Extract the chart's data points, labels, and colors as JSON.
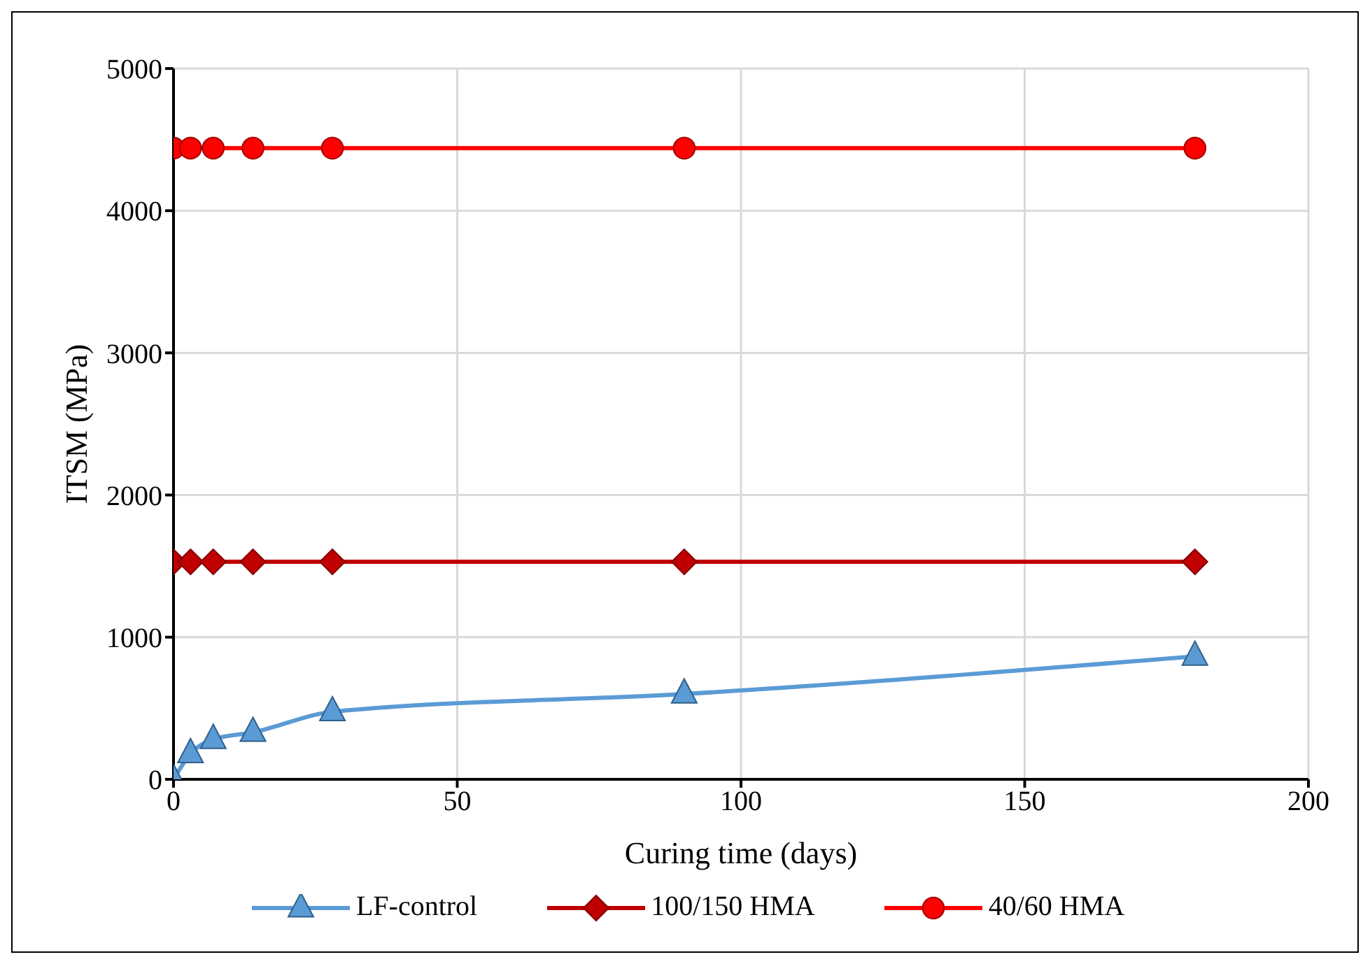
{
  "chart_data": {
    "type": "line",
    "xlabel": "Curing time (days)",
    "ylabel": "ITSM (MPa)",
    "x": [
      0,
      3,
      7,
      14,
      28,
      90,
      180
    ],
    "series": [
      {
        "name": "LF-control",
        "color": "#5b9bd5",
        "marker": "triangle",
        "values": [
          0,
          180,
          280,
          330,
          475,
          600,
          865
        ]
      },
      {
        "name": "100/150 HMA",
        "color": "#c00000",
        "marker": "diamond",
        "values": [
          1530,
          1530,
          1530,
          1530,
          1530,
          1530,
          1530
        ]
      },
      {
        "name": "40/60 HMA",
        "color": "#ff0000",
        "marker": "circle",
        "values": [
          4440,
          4440,
          4440,
          4440,
          4440,
          4440,
          4440
        ]
      }
    ],
    "xlim": [
      0,
      200
    ],
    "xticks": [
      0,
      50,
      100,
      150,
      200
    ],
    "ylim": [
      0,
      5000
    ],
    "yticks": [
      0,
      1000,
      2000,
      3000,
      4000,
      5000
    ],
    "grid": true,
    "legend": "bottom",
    "line_style": "solid"
  }
}
